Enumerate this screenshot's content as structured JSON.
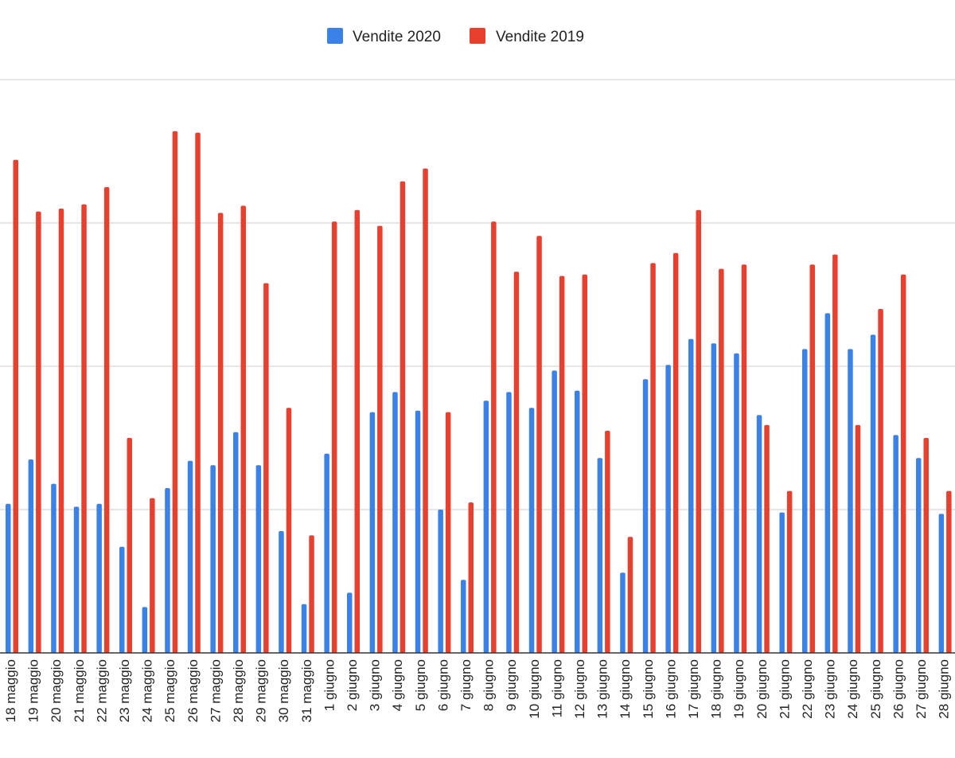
{
  "chart_data": {
    "type": "bar",
    "title": "",
    "xlabel": "",
    "ylabel": "",
    "ylim": [
      0,
      400
    ],
    "gridlines": [
      100,
      200,
      300,
      400
    ],
    "categories": [
      "18 maggio",
      "19 maggio",
      "20 maggio",
      "21 maggio",
      "22 maggio",
      "23 maggio",
      "24 maggio",
      "25 maggio",
      "26 maggio",
      "27 maggio",
      "28 maggio",
      "29 maggio",
      "30 maggio",
      "31 maggio",
      "1 giugno",
      "2 giugno",
      "3 giugno",
      "4 giugno",
      "5 giugno",
      "6 giugno",
      "7 giugno",
      "8 giugno",
      "9 giugno",
      "10 giugno",
      "11 giugno",
      "12 giugno",
      "13 giugno",
      "14 giugno",
      "15 giugno",
      "16 giugno",
      "17 giugno",
      "18 giugno",
      "19 giugno",
      "20 giugno",
      "21 giugno",
      "22 giugno",
      "23 giugno",
      "24 giugno",
      "25 giugno",
      "26 giugno",
      "27 giugno",
      "28 giugno"
    ],
    "series": [
      {
        "name": "Vendite 2020",
        "color": "#3b82e8",
        "values": [
          104,
          135,
          118,
          102,
          104,
          74,
          32,
          115,
          134,
          131,
          154,
          131,
          85,
          34,
          139,
          42,
          168,
          182,
          169,
          100,
          51,
          176,
          182,
          171,
          197,
          183,
          136,
          56,
          191,
          201,
          219,
          216,
          209,
          166,
          98,
          212,
          237,
          212,
          222,
          152,
          136,
          97
        ]
      },
      {
        "name": "Vendite 2019",
        "color": "#e8402f",
        "values": [
          344,
          308,
          310,
          313,
          325,
          150,
          108,
          364,
          363,
          307,
          312,
          258,
          171,
          82,
          301,
          309,
          298,
          329,
          338,
          168,
          105,
          301,
          266,
          291,
          263,
          264,
          155,
          81,
          272,
          279,
          309,
          268,
          271,
          159,
          113,
          271,
          278,
          159,
          240,
          264,
          150,
          113
        ]
      }
    ],
    "legend": {
      "position": "top-center",
      "items": [
        "Vendite 2020",
        "Vendite 2019"
      ]
    }
  }
}
